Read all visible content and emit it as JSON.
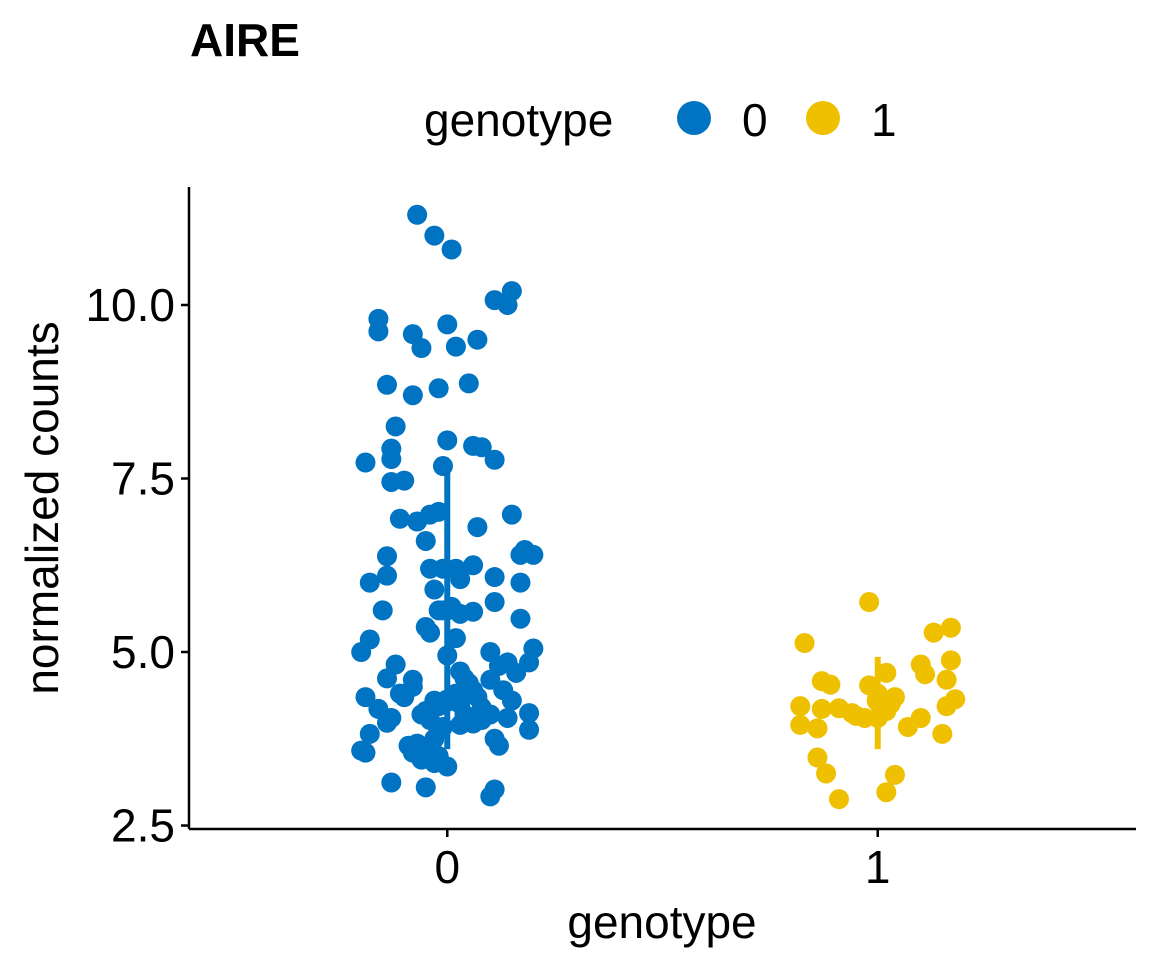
{
  "chart_data": {
    "type": "scatter",
    "title": "AIRE",
    "xlabel": "genotype",
    "ylabel": "normalized counts",
    "categories": [
      "0",
      "1"
    ],
    "ylim": [
      2.45,
      11.7
    ],
    "yticks": [
      2.5,
      5.0,
      7.5,
      10.0
    ],
    "ytick_labels": [
      "2.5",
      "5.0",
      "7.5",
      "10.0"
    ],
    "grid": false,
    "legend": {
      "title": "genotype",
      "placement": "top",
      "entries": [
        {
          "label": "0",
          "color": "#0073C2"
        },
        {
          "label": "1",
          "color": "#EFC000"
        }
      ]
    },
    "series": [
      {
        "name": "0",
        "category": "0",
        "color": "#0073C2",
        "summary": {
          "median": 4.3,
          "low": 3.6,
          "high": 7.6
        },
        "points": [
          [
            -0.07,
            11.3
          ],
          [
            -0.03,
            11.0
          ],
          [
            0.01,
            10.8
          ],
          [
            0.15,
            10.2
          ],
          [
            0.11,
            10.07
          ],
          [
            0.14,
            10.0
          ],
          [
            -0.16,
            9.8
          ],
          [
            -0.16,
            9.62
          ],
          [
            -0.08,
            9.58
          ],
          [
            0.0,
            9.72
          ],
          [
            -0.06,
            9.38
          ],
          [
            0.02,
            9.4
          ],
          [
            0.07,
            9.5
          ],
          [
            -0.14,
            8.85
          ],
          [
            -0.02,
            8.8
          ],
          [
            -0.08,
            8.7
          ],
          [
            0.05,
            8.87
          ],
          [
            -0.12,
            8.25
          ],
          [
            -0.13,
            7.93
          ],
          [
            -0.19,
            7.73
          ],
          [
            -0.13,
            7.78
          ],
          [
            0.0,
            8.05
          ],
          [
            0.06,
            7.97
          ],
          [
            0.08,
            7.95
          ],
          [
            0.11,
            7.77
          ],
          [
            -0.01,
            7.68
          ],
          [
            -0.13,
            7.45
          ],
          [
            -0.1,
            7.47
          ],
          [
            -0.11,
            6.92
          ],
          [
            -0.07,
            6.88
          ],
          [
            -0.04,
            6.98
          ],
          [
            -0.02,
            7.02
          ],
          [
            -0.05,
            6.6
          ],
          [
            0.07,
            6.8
          ],
          [
            0.15,
            6.98
          ],
          [
            -0.14,
            6.38
          ],
          [
            -0.14,
            6.1
          ],
          [
            -0.18,
            6.0
          ],
          [
            -0.15,
            5.6
          ],
          [
            -0.04,
            6.2
          ],
          [
            -0.01,
            6.2
          ],
          [
            0.02,
            6.2
          ],
          [
            0.03,
            6.05
          ],
          [
            0.06,
            6.25
          ],
          [
            0.11,
            6.08
          ],
          [
            0.17,
            6.4
          ],
          [
            0.18,
            6.47
          ],
          [
            0.2,
            6.4
          ],
          [
            0.17,
            6.0
          ],
          [
            -0.03,
            5.9
          ],
          [
            -0.02,
            5.6
          ],
          [
            0.0,
            5.6
          ],
          [
            0.01,
            5.65
          ],
          [
            0.03,
            5.55
          ],
          [
            0.06,
            5.58
          ],
          [
            0.11,
            5.72
          ],
          [
            0.17,
            5.48
          ],
          [
            -0.05,
            5.36
          ],
          [
            -0.04,
            5.28
          ],
          [
            -0.01,
            5.6
          ],
          [
            0.02,
            5.2
          ],
          [
            -0.18,
            5.18
          ],
          [
            -0.2,
            5.0
          ],
          [
            -0.14,
            4.62
          ],
          [
            -0.12,
            4.82
          ],
          [
            -0.19,
            4.35
          ],
          [
            -0.16,
            4.18
          ],
          [
            -0.13,
            4.05
          ],
          [
            -0.14,
            3.98
          ],
          [
            -0.08,
            4.6
          ],
          [
            -0.08,
            4.5
          ],
          [
            -0.11,
            4.4
          ],
          [
            -0.1,
            4.35
          ],
          [
            -0.06,
            4.1
          ],
          [
            -0.04,
            4.02
          ],
          [
            -0.05,
            4.15
          ],
          [
            -0.03,
            4.3
          ],
          [
            -0.02,
            4.22
          ],
          [
            0.0,
            4.95
          ],
          [
            0.03,
            4.72
          ],
          [
            0.04,
            4.62
          ],
          [
            0.05,
            4.55
          ],
          [
            0.02,
            4.4
          ],
          [
            0.01,
            4.3
          ],
          [
            0.03,
            4.25
          ],
          [
            0.06,
            4.45
          ],
          [
            0.07,
            4.35
          ],
          [
            0.08,
            4.2
          ],
          [
            0.1,
            4.1
          ],
          [
            0.1,
            4.6
          ],
          [
            0.1,
            5.0
          ],
          [
            0.12,
            4.8
          ],
          [
            0.14,
            4.85
          ],
          [
            0.16,
            4.7
          ],
          [
            0.19,
            4.85
          ],
          [
            0.2,
            5.05
          ],
          [
            0.13,
            4.45
          ],
          [
            0.15,
            4.3
          ],
          [
            0.14,
            4.05
          ],
          [
            0.19,
            4.12
          ],
          [
            0.08,
            4.02
          ],
          [
            0.06,
            3.97
          ],
          [
            0.03,
            3.95
          ],
          [
            -0.01,
            3.92
          ],
          [
            0.11,
            3.75
          ],
          [
            0.12,
            3.65
          ],
          [
            0.19,
            3.88
          ],
          [
            -0.02,
            3.88
          ],
          [
            -0.03,
            3.75
          ],
          [
            -0.05,
            3.6
          ],
          [
            -0.08,
            3.55
          ],
          [
            -0.09,
            3.65
          ],
          [
            -0.06,
            3.45
          ],
          [
            -0.02,
            3.5
          ],
          [
            0.0,
            3.35
          ],
          [
            -0.03,
            3.4
          ],
          [
            -0.2,
            3.58
          ],
          [
            -0.19,
            3.55
          ],
          [
            -0.18,
            3.82
          ],
          [
            -0.13,
            3.12
          ],
          [
            -0.05,
            3.05
          ],
          [
            0.1,
            2.92
          ],
          [
            0.11,
            3.02
          ],
          [
            -0.07,
            3.68
          ],
          [
            0.04,
            4.1
          ]
        ]
      },
      {
        "name": "1",
        "category": "1",
        "color": "#EFC000",
        "summary": {
          "median": 4.3,
          "low": 3.6,
          "high": 4.93
        },
        "points": [
          [
            -0.17,
            5.13
          ],
          [
            -0.02,
            5.72
          ],
          [
            0.13,
            5.28
          ],
          [
            0.17,
            5.35
          ],
          [
            -0.13,
            4.58
          ],
          [
            -0.11,
            4.53
          ],
          [
            -0.09,
            4.19
          ],
          [
            -0.06,
            4.12
          ],
          [
            -0.05,
            4.08
          ],
          [
            -0.03,
            4.05
          ],
          [
            -0.02,
            4.52
          ],
          [
            0.0,
            4.4
          ],
          [
            0.02,
            4.3
          ],
          [
            0.03,
            4.25
          ],
          [
            0.04,
            4.35
          ],
          [
            0.02,
            4.7
          ],
          [
            0.1,
            4.82
          ],
          [
            0.11,
            4.68
          ],
          [
            0.17,
            4.88
          ],
          [
            0.16,
            4.6
          ],
          [
            0.16,
            4.22
          ],
          [
            0.18,
            4.32
          ],
          [
            -0.18,
            4.22
          ],
          [
            -0.18,
            3.95
          ],
          [
            -0.13,
            4.18
          ],
          [
            -0.14,
            3.9
          ],
          [
            -0.14,
            3.48
          ],
          [
            -0.12,
            3.25
          ],
          [
            -0.09,
            2.88
          ],
          [
            0.02,
            4.15
          ],
          [
            0.0,
            4.05
          ],
          [
            0.07,
            3.92
          ],
          [
            0.1,
            4.05
          ],
          [
            0.15,
            3.82
          ],
          [
            0.04,
            3.23
          ],
          [
            0.02,
            2.98
          ]
        ]
      }
    ]
  }
}
